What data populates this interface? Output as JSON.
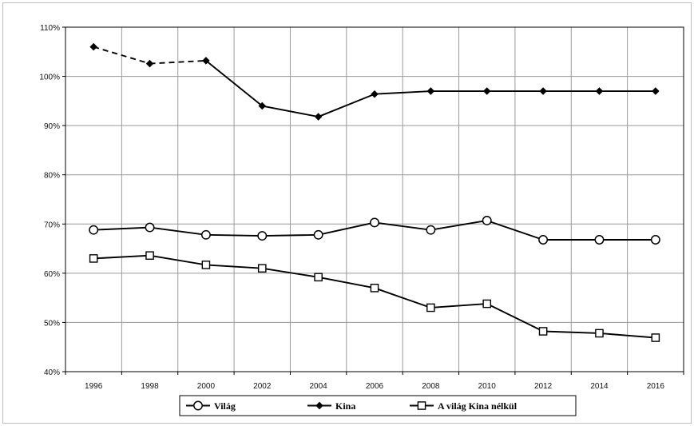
{
  "chart_data": {
    "type": "line",
    "title": "",
    "xlabel": "",
    "ylabel": "",
    "ylim": [
      40,
      110
    ],
    "grid": true,
    "legend_position": "bottom",
    "x": [
      "1996",
      "1998",
      "2000",
      "2002",
      "2004",
      "2006",
      "2008",
      "2010",
      "2012",
      "2014",
      "2016"
    ],
    "y_ticks": [
      "40%",
      "50%",
      "60%",
      "70%",
      "80%",
      "90%",
      "100%",
      "110%"
    ],
    "series": [
      {
        "name": "Világ",
        "marker": "circle",
        "color": "#000000",
        "values": [
          68.8,
          69.3,
          67.8,
          67.6,
          67.8,
          70.3,
          68.8,
          70.7,
          66.8,
          66.8,
          66.8
        ]
      },
      {
        "name": "Kina",
        "marker": "diamond",
        "color": "#000000",
        "dashed_until_index": 2,
        "values": [
          106.0,
          102.6,
          103.2,
          94.0,
          91.8,
          96.4,
          97.0,
          97.0,
          97.0,
          97.0,
          97.0
        ]
      },
      {
        "name": "A világ Kina nélkül",
        "marker": "square",
        "color": "#000000",
        "values": [
          63.0,
          63.6,
          61.7,
          61.0,
          59.2,
          57.0,
          53.0,
          53.8,
          48.2,
          47.8,
          46.9
        ]
      }
    ]
  }
}
